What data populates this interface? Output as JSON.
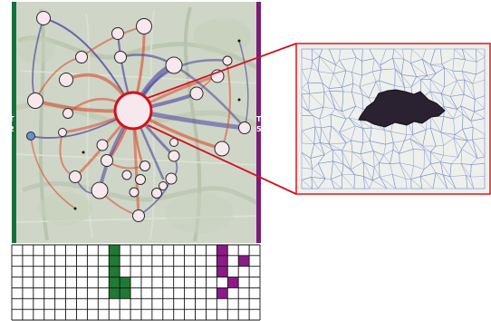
{
  "colors": {
    "map_background": "#cfd6c7",
    "left_bar": "#16703a",
    "right_bar": "#7a1d78",
    "focus_ring": "#d0121e",
    "callout_frame": "#e3141c",
    "grid_line": "#111111",
    "grid_fill_green": "#1f7a33",
    "grid_fill_purple": "#8c1a88",
    "flow_red": "#d94a2b",
    "flow_blue": "#4a3fa0",
    "node_fill": "#f7e8ee",
    "blob_fill": "#2a2230"
  },
  "left_marker": {
    "letter": "T",
    "number": "2"
  },
  "right_marker": {
    "letter": "T",
    "number": "5"
  },
  "grid": {
    "columns": 23,
    "rows": 7,
    "filled_cells": [
      {
        "col": 9,
        "row": 0,
        "color": "green"
      },
      {
        "col": 9,
        "row": 1,
        "color": "green"
      },
      {
        "col": 9,
        "row": 2,
        "color": "green"
      },
      {
        "col": 9,
        "row": 3,
        "color": "green"
      },
      {
        "col": 9,
        "row": 4,
        "color": "green"
      },
      {
        "col": 10,
        "row": 3,
        "color": "green"
      },
      {
        "col": 10,
        "row": 4,
        "color": "green"
      },
      {
        "col": 19,
        "row": 0,
        "color": "purple"
      },
      {
        "col": 19,
        "row": 1,
        "color": "purple"
      },
      {
        "col": 19,
        "row": 2,
        "color": "purple"
      },
      {
        "col": 21,
        "row": 1,
        "color": "purple"
      },
      {
        "col": 20,
        "row": 3,
        "color": "purple"
      },
      {
        "col": 19,
        "row": 4,
        "color": "purple"
      }
    ]
  }
}
